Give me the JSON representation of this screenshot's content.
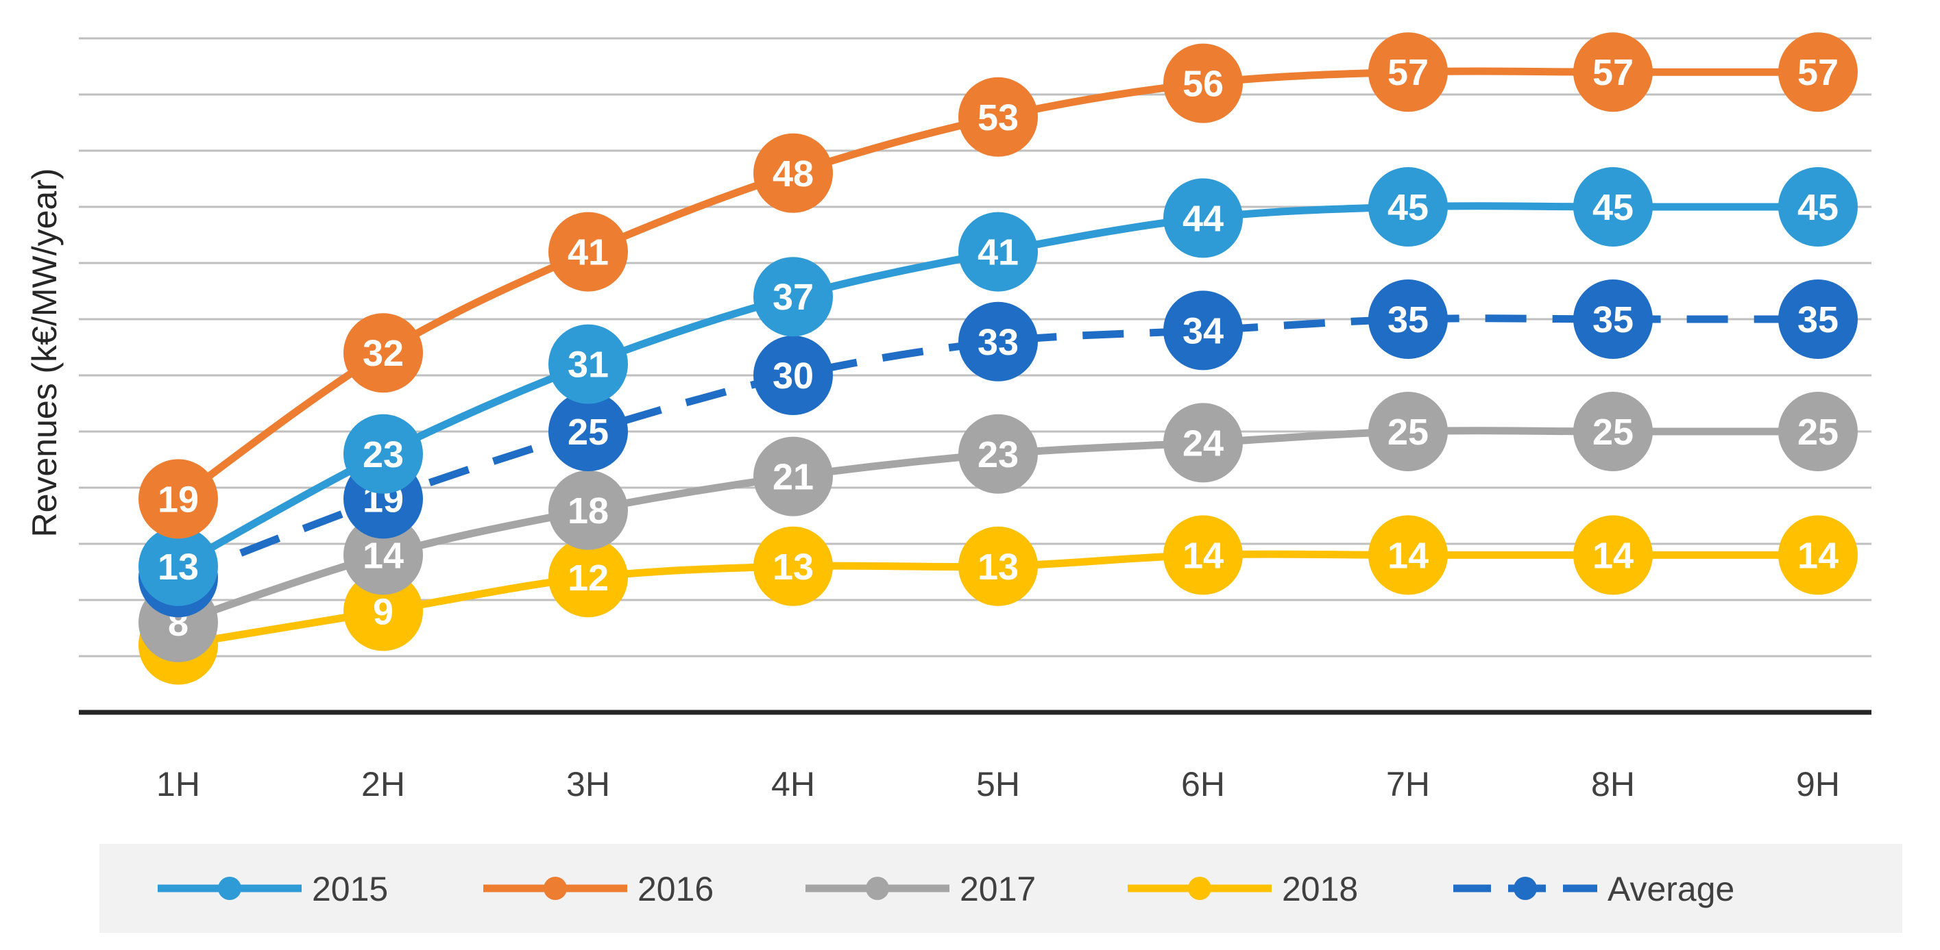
{
  "chart_data": {
    "type": "line",
    "title": "",
    "xlabel": "",
    "ylabel": "Revenues (k€/MW/year)",
    "categories": [
      "1H",
      "2H",
      "3H",
      "4H",
      "5H",
      "6H",
      "7H",
      "8H",
      "9H"
    ],
    "ylim": [
      0,
      60
    ],
    "y_tick_step": 5,
    "grid": true,
    "y_tick_labels_shown": false,
    "legend_position": "bottom",
    "series": [
      {
        "name": "2015",
        "values": [
          13,
          23,
          31,
          37,
          41,
          44,
          45,
          45,
          45
        ],
        "color": "#2E9BD6",
        "dashed": false
      },
      {
        "name": "2016",
        "values": [
          19,
          32,
          41,
          48,
          53,
          56,
          57,
          57,
          57
        ],
        "color": "#ED7D31",
        "dashed": false
      },
      {
        "name": "2017",
        "values": [
          8,
          14,
          18,
          21,
          23,
          24,
          25,
          25,
          25
        ],
        "color": "#A5A5A5",
        "dashed": false
      },
      {
        "name": "2018",
        "values": [
          6,
          9,
          12,
          13,
          13,
          14,
          14,
          14,
          14
        ],
        "color": "#FFC000",
        "dashed": false
      },
      {
        "name": "Average",
        "values": [
          12,
          19,
          25,
          30,
          33,
          34,
          35,
          35,
          35
        ],
        "color": "#1F6DC4",
        "dashed": true
      }
    ]
  }
}
